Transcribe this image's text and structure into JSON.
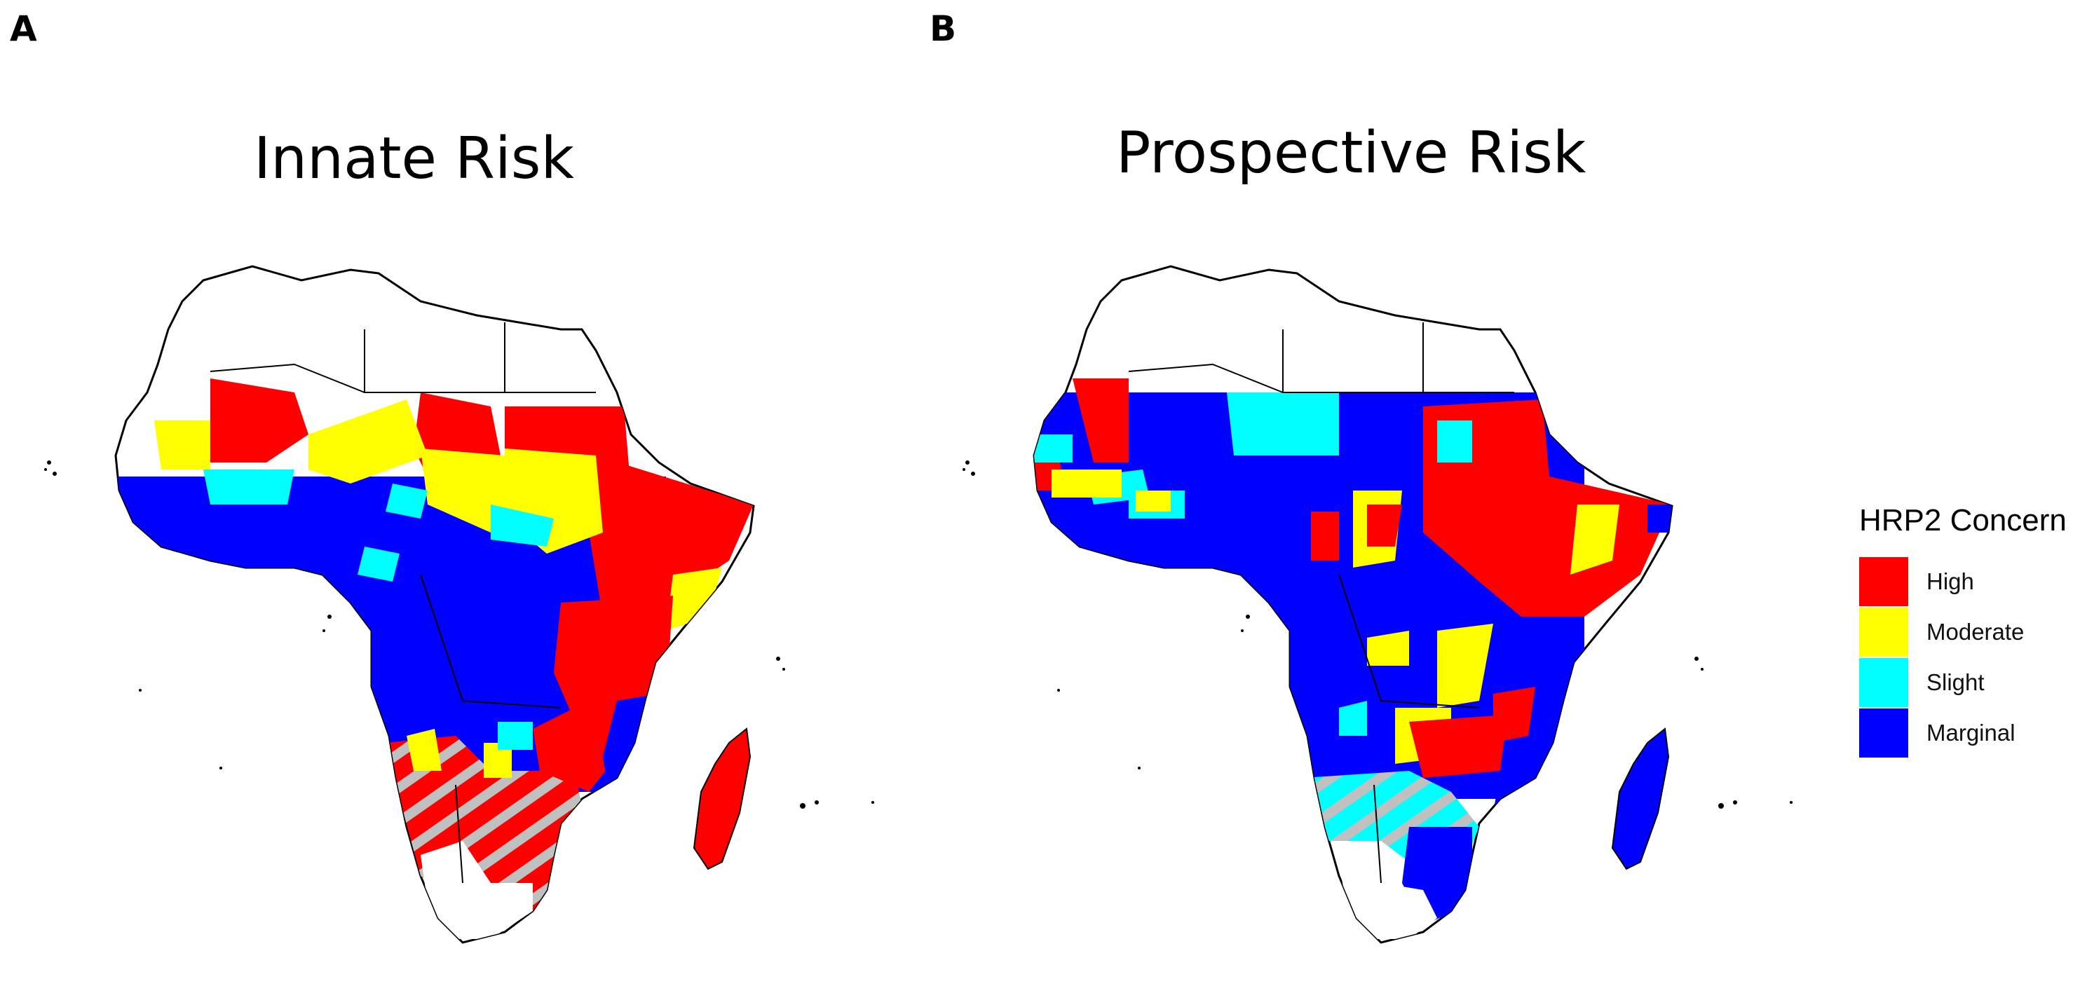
{
  "panels": [
    {
      "letter": "A",
      "title": "Innate Risk"
    },
    {
      "letter": "B",
      "title": "Prospective Risk"
    }
  ],
  "legend": {
    "title": "HRP2 Concern",
    "items": [
      {
        "label": "High",
        "color": "#ff0000"
      },
      {
        "label": "Moderate",
        "color": "#ffff00"
      },
      {
        "label": "Slight",
        "color": "#00ffff"
      },
      {
        "label": "Marginal",
        "color": "#0000ff"
      }
    ]
  },
  "colors": {
    "no_data": "#ffffff",
    "hatch": "#c0c0c0",
    "border": "#000000",
    "admin_border": "#ffffff"
  }
}
